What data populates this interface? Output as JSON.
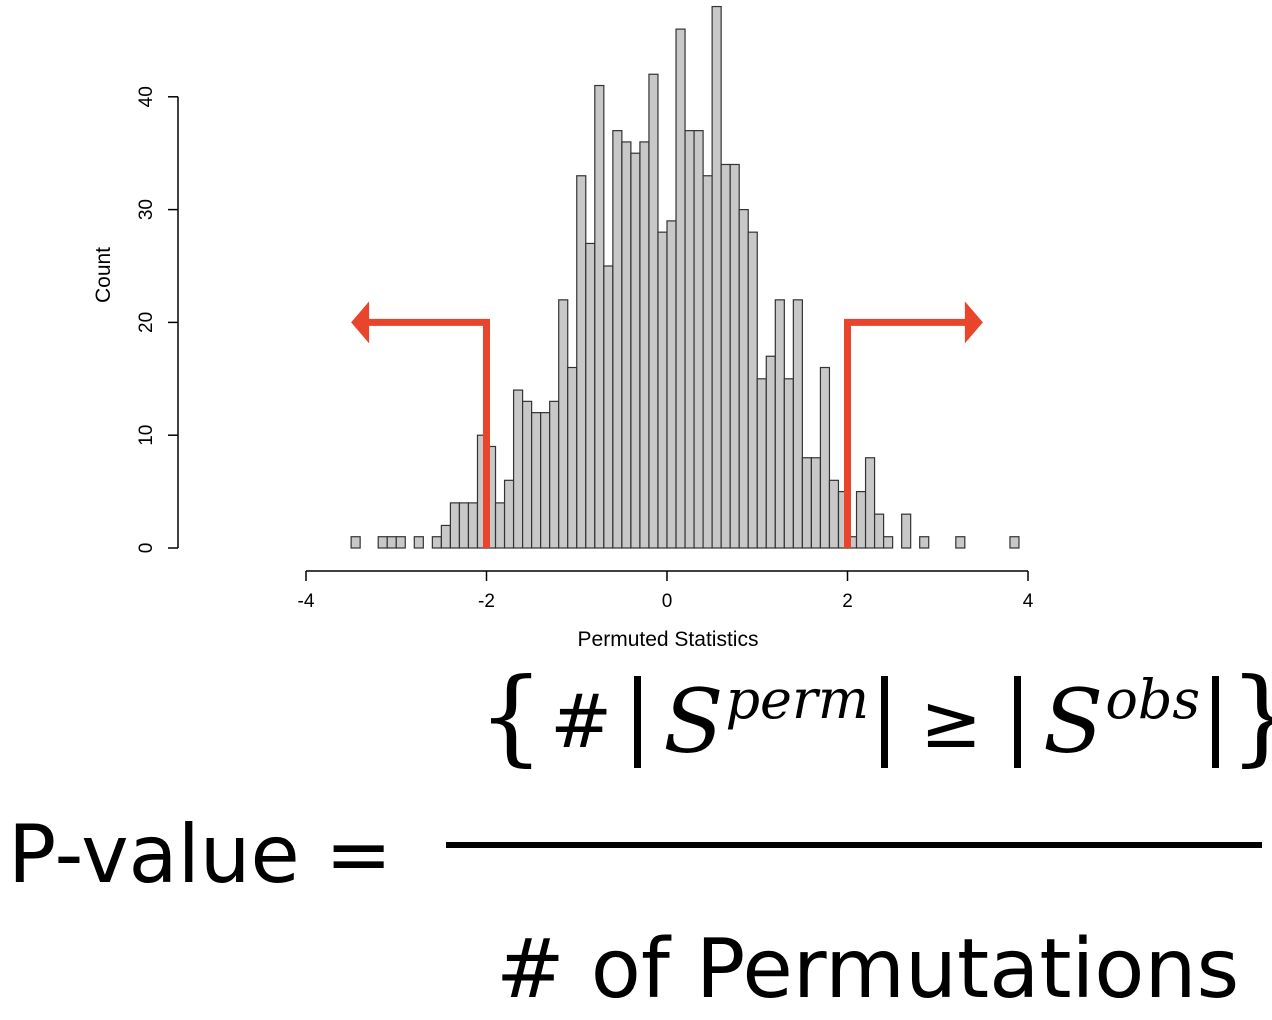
{
  "chart_data": {
    "type": "bar",
    "title": "",
    "xlabel": "Permuted Statistics",
    "ylabel": "Count",
    "xlim": [
      -4,
      4
    ],
    "ylim": [
      0,
      48
    ],
    "xticks": [
      "-4",
      "-2",
      "0",
      "2",
      "4"
    ],
    "yticks": [
      "0",
      "10",
      "20",
      "30",
      "40"
    ],
    "bin_width": 0.1,
    "bins": [
      {
        "x0": -3.5,
        "count": 1
      },
      {
        "x0": -3.2,
        "count": 1
      },
      {
        "x0": -3.1,
        "count": 1
      },
      {
        "x0": -3.0,
        "count": 1
      },
      {
        "x0": -2.8,
        "count": 1
      },
      {
        "x0": -2.6,
        "count": 1
      },
      {
        "x0": -2.5,
        "count": 2
      },
      {
        "x0": -2.4,
        "count": 4
      },
      {
        "x0": -2.3,
        "count": 4
      },
      {
        "x0": -2.2,
        "count": 4
      },
      {
        "x0": -2.1,
        "count": 10
      },
      {
        "x0": -2.0,
        "count": 9
      },
      {
        "x0": -1.9,
        "count": 4
      },
      {
        "x0": -1.8,
        "count": 6
      },
      {
        "x0": -1.7,
        "count": 14
      },
      {
        "x0": -1.6,
        "count": 13
      },
      {
        "x0": -1.5,
        "count": 12
      },
      {
        "x0": -1.4,
        "count": 12
      },
      {
        "x0": -1.3,
        "count": 13
      },
      {
        "x0": -1.2,
        "count": 22
      },
      {
        "x0": -1.1,
        "count": 16
      },
      {
        "x0": -1.0,
        "count": 33
      },
      {
        "x0": -0.9,
        "count": 27
      },
      {
        "x0": -0.8,
        "count": 41
      },
      {
        "x0": -0.7,
        "count": 25
      },
      {
        "x0": -0.6,
        "count": 37
      },
      {
        "x0": -0.5,
        "count": 36
      },
      {
        "x0": -0.4,
        "count": 35
      },
      {
        "x0": -0.3,
        "count": 36
      },
      {
        "x0": -0.2,
        "count": 42
      },
      {
        "x0": -0.1,
        "count": 28
      },
      {
        "x0": 0.0,
        "count": 29
      },
      {
        "x0": 0.1,
        "count": 46
      },
      {
        "x0": 0.2,
        "count": 37
      },
      {
        "x0": 0.3,
        "count": 37
      },
      {
        "x0": 0.4,
        "count": 33
      },
      {
        "x0": 0.5,
        "count": 48
      },
      {
        "x0": 0.6,
        "count": 34
      },
      {
        "x0": 0.7,
        "count": 34
      },
      {
        "x0": 0.8,
        "count": 30
      },
      {
        "x0": 0.9,
        "count": 28
      },
      {
        "x0": 1.0,
        "count": 15
      },
      {
        "x0": 1.1,
        "count": 17
      },
      {
        "x0": 1.2,
        "count": 22
      },
      {
        "x0": 1.3,
        "count": 15
      },
      {
        "x0": 1.4,
        "count": 22
      },
      {
        "x0": 1.5,
        "count": 8
      },
      {
        "x0": 1.6,
        "count": 8
      },
      {
        "x0": 1.7,
        "count": 16
      },
      {
        "x0": 1.8,
        "count": 6
      },
      {
        "x0": 1.9,
        "count": 5
      },
      {
        "x0": 2.0,
        "count": 1
      },
      {
        "x0": 2.1,
        "count": 5
      },
      {
        "x0": 2.2,
        "count": 8
      },
      {
        "x0": 2.3,
        "count": 3
      },
      {
        "x0": 2.4,
        "count": 1
      },
      {
        "x0": 2.6,
        "count": 3
      },
      {
        "x0": 2.8,
        "count": 1
      },
      {
        "x0": 3.2,
        "count": 1
      },
      {
        "x0": 3.8,
        "count": 1
      }
    ],
    "annotations": [
      {
        "type": "threshold-arrow",
        "x": -2,
        "y": 20,
        "direction": "left",
        "to_x": -3.5,
        "color": "#e8452c"
      },
      {
        "type": "threshold-arrow",
        "x": 2,
        "y": 20,
        "direction": "right",
        "to_x": 3.5,
        "color": "#e8452c"
      }
    ],
    "bar_fill": "#c8c8c8",
    "bar_stroke": "#333333"
  },
  "formula": {
    "lhs": "P-value =",
    "numerator": {
      "open": "{",
      "hash": "#",
      "s_perm": "S",
      "perm_sup": "perm",
      "geq": "≥",
      "s_obs": "S",
      "obs_sup": "obs",
      "close": "}"
    },
    "denominator": "# of Permutations"
  }
}
